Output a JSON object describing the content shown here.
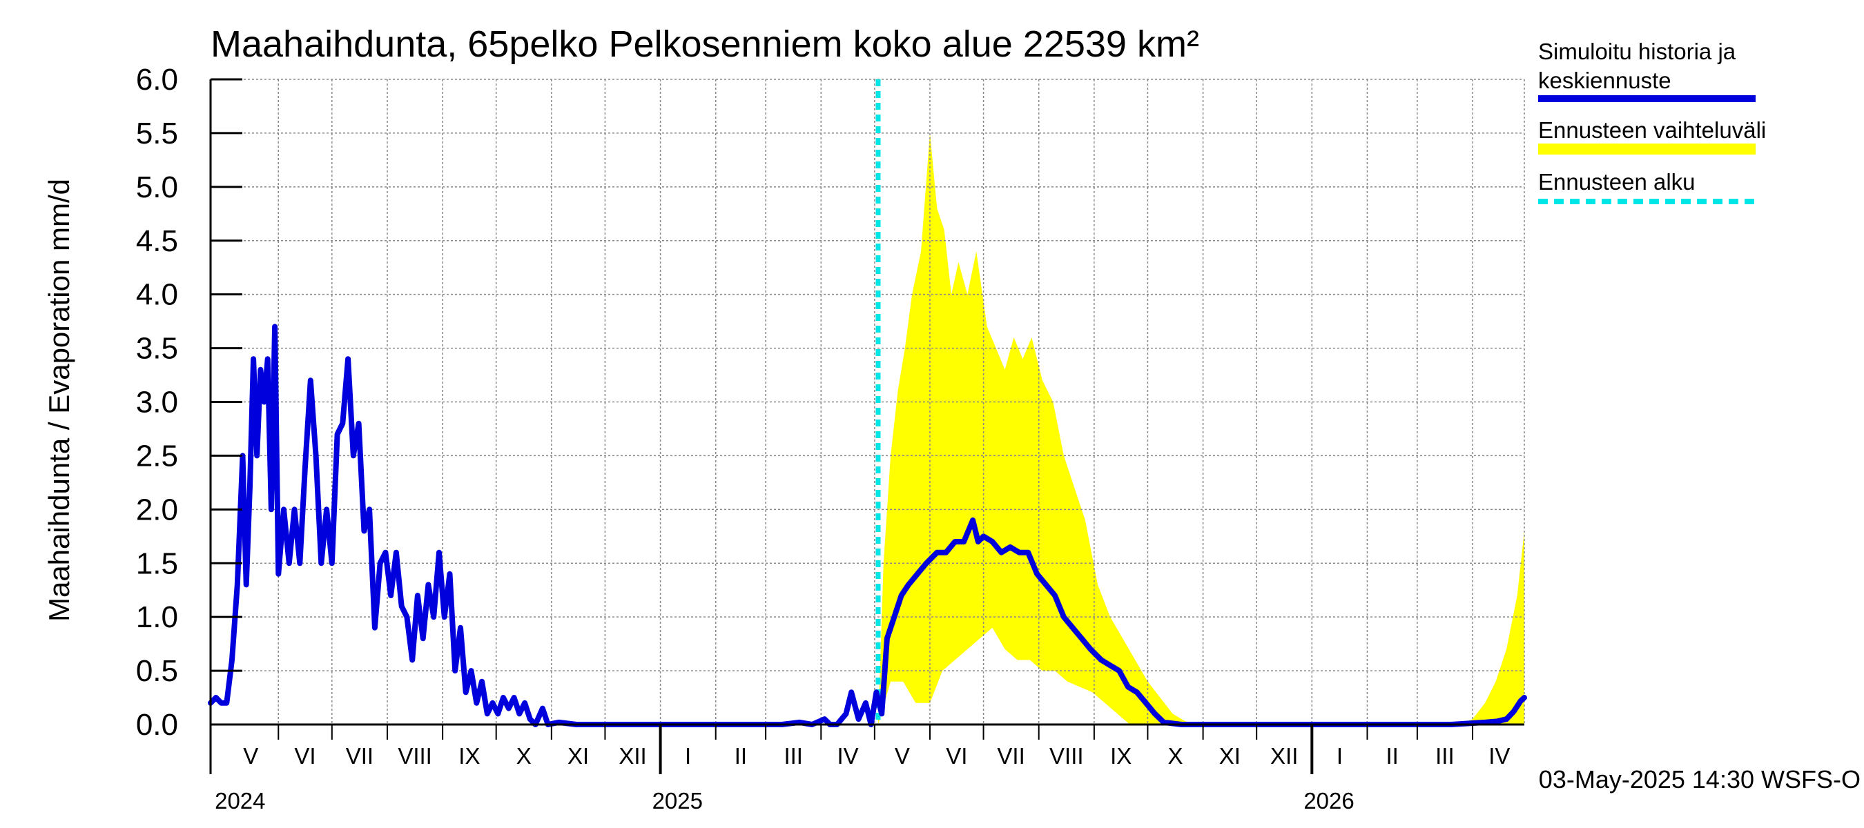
{
  "chart_data": {
    "type": "line",
    "title": "Maahaihdunta, 65pelko Pelkosenniem koko alue 22539 km²",
    "ylabel": "Maahaihdunta / Evaporation   mm/d",
    "ylim": [
      0,
      6.0
    ],
    "y_ticks": [
      "0.0",
      "0.5",
      "1.0",
      "1.5",
      "2.0",
      "2.5",
      "3.0",
      "3.5",
      "4.0",
      "4.5",
      "5.0",
      "5.5",
      "6.0"
    ],
    "x_range": [
      "2024-04-24",
      "2026-04-30"
    ],
    "grid": true,
    "legend_position": "right",
    "month_labels": [
      {
        "label": "V",
        "date": "2024-05-01"
      },
      {
        "label": "VI",
        "date": "2024-06-01"
      },
      {
        "label": "VII",
        "date": "2024-07-01"
      },
      {
        "label": "VIII",
        "date": "2024-08-01"
      },
      {
        "label": "IX",
        "date": "2024-09-01"
      },
      {
        "label": "X",
        "date": "2024-10-01"
      },
      {
        "label": "XI",
        "date": "2024-11-01"
      },
      {
        "label": "XII",
        "date": "2024-12-01"
      },
      {
        "label": "I",
        "date": "2025-01-01"
      },
      {
        "label": "II",
        "date": "2025-02-01"
      },
      {
        "label": "III",
        "date": "2025-03-01"
      },
      {
        "label": "IV",
        "date": "2025-04-01"
      },
      {
        "label": "V",
        "date": "2025-05-01"
      },
      {
        "label": "VI",
        "date": "2025-06-01"
      },
      {
        "label": "VII",
        "date": "2025-07-01"
      },
      {
        "label": "VIII",
        "date": "2025-08-01"
      },
      {
        "label": "IX",
        "date": "2025-09-01"
      },
      {
        "label": "X",
        "date": "2025-10-01"
      },
      {
        "label": "XI",
        "date": "2025-11-01"
      },
      {
        "label": "XII",
        "date": "2025-12-01"
      },
      {
        "label": "I",
        "date": "2026-01-01"
      },
      {
        "label": "II",
        "date": "2026-02-01"
      },
      {
        "label": "III",
        "date": "2026-03-01"
      },
      {
        "label": "IV",
        "date": "2026-04-01"
      }
    ],
    "year_labels": [
      {
        "label": "2024",
        "date": "2024-05-01"
      },
      {
        "label": "2025",
        "date": "2025-01-01"
      },
      {
        "label": "2026",
        "date": "2026-01-01"
      }
    ],
    "forecast_start": "2025-05-03",
    "footer": "03-May-2025 14:30 WSFS-O",
    "colors": {
      "history": "#0000dd",
      "range": "#ffff00",
      "forecast_start": "#00e5e5"
    },
    "legend": [
      {
        "label_lines": [
          "Simuloitu historia ja",
          "keskiennuste"
        ],
        "color": "#0000dd",
        "style": "solid"
      },
      {
        "label_lines": [
          "Ennusteen vaihteluväli"
        ],
        "color": "#ffff00",
        "style": "band"
      },
      {
        "label_lines": [
          "Ennusteen alku"
        ],
        "color": "#00e5e5",
        "style": "dashed"
      }
    ],
    "series": [
      {
        "name": "Simuloitu historia ja keskiennuste",
        "points": [
          [
            "2024-04-24",
            0.2
          ],
          [
            "2024-04-27",
            0.25
          ],
          [
            "2024-04-30",
            0.2
          ],
          [
            "2024-05-03",
            0.2
          ],
          [
            "2024-05-06",
            0.6
          ],
          [
            "2024-05-09",
            1.3
          ],
          [
            "2024-05-12",
            2.5
          ],
          [
            "2024-05-14",
            1.3
          ],
          [
            "2024-05-16",
            2.2
          ],
          [
            "2024-05-18",
            3.4
          ],
          [
            "2024-05-20",
            2.5
          ],
          [
            "2024-05-22",
            3.3
          ],
          [
            "2024-05-24",
            3.0
          ],
          [
            "2024-05-26",
            3.4
          ],
          [
            "2024-05-28",
            2.0
          ],
          [
            "2024-05-30",
            3.7
          ],
          [
            "2024-06-01",
            1.4
          ],
          [
            "2024-06-04",
            2.0
          ],
          [
            "2024-06-07",
            1.5
          ],
          [
            "2024-06-10",
            2.0
          ],
          [
            "2024-06-13",
            1.5
          ],
          [
            "2024-06-16",
            2.4
          ],
          [
            "2024-06-19",
            3.2
          ],
          [
            "2024-06-22",
            2.5
          ],
          [
            "2024-06-25",
            1.5
          ],
          [
            "2024-06-28",
            2.0
          ],
          [
            "2024-07-01",
            1.5
          ],
          [
            "2024-07-04",
            2.7
          ],
          [
            "2024-07-07",
            2.8
          ],
          [
            "2024-07-10",
            3.4
          ],
          [
            "2024-07-13",
            2.5
          ],
          [
            "2024-07-16",
            2.8
          ],
          [
            "2024-07-19",
            1.8
          ],
          [
            "2024-07-22",
            2.0
          ],
          [
            "2024-07-25",
            0.9
          ],
          [
            "2024-07-28",
            1.5
          ],
          [
            "2024-07-31",
            1.6
          ],
          [
            "2024-08-03",
            1.2
          ],
          [
            "2024-08-06",
            1.6
          ],
          [
            "2024-08-09",
            1.1
          ],
          [
            "2024-08-12",
            1.0
          ],
          [
            "2024-08-15",
            0.6
          ],
          [
            "2024-08-18",
            1.2
          ],
          [
            "2024-08-21",
            0.8
          ],
          [
            "2024-08-24",
            1.3
          ],
          [
            "2024-08-27",
            1.0
          ],
          [
            "2024-08-30",
            1.6
          ],
          [
            "2024-09-02",
            1.0
          ],
          [
            "2024-09-05",
            1.4
          ],
          [
            "2024-09-08",
            0.5
          ],
          [
            "2024-09-11",
            0.9
          ],
          [
            "2024-09-14",
            0.3
          ],
          [
            "2024-09-17",
            0.5
          ],
          [
            "2024-09-20",
            0.2
          ],
          [
            "2024-09-23",
            0.4
          ],
          [
            "2024-09-26",
            0.1
          ],
          [
            "2024-09-29",
            0.2
          ],
          [
            "2024-10-02",
            0.1
          ],
          [
            "2024-10-05",
            0.25
          ],
          [
            "2024-10-08",
            0.15
          ],
          [
            "2024-10-11",
            0.25
          ],
          [
            "2024-10-14",
            0.1
          ],
          [
            "2024-10-17",
            0.2
          ],
          [
            "2024-10-20",
            0.05
          ],
          [
            "2024-10-23",
            0.0
          ],
          [
            "2024-10-27",
            0.15
          ],
          [
            "2024-10-30",
            0.0
          ],
          [
            "2024-11-05",
            0.02
          ],
          [
            "2024-11-15",
            0.0
          ],
          [
            "2024-12-15",
            0.0
          ],
          [
            "2025-01-15",
            0.0
          ],
          [
            "2025-02-15",
            0.0
          ],
          [
            "2025-03-10",
            0.0
          ],
          [
            "2025-03-20",
            0.02
          ],
          [
            "2025-03-27",
            0.0
          ],
          [
            "2025-04-03",
            0.05
          ],
          [
            "2025-04-06",
            0.0
          ],
          [
            "2025-04-10",
            0.0
          ],
          [
            "2025-04-15",
            0.1
          ],
          [
            "2025-04-18",
            0.3
          ],
          [
            "2025-04-22",
            0.05
          ],
          [
            "2025-04-26",
            0.2
          ],
          [
            "2025-04-29",
            0.0
          ],
          [
            "2025-05-02",
            0.3
          ],
          [
            "2025-05-05",
            0.1
          ],
          [
            "2025-05-08",
            0.8
          ],
          [
            "2025-05-12",
            1.0
          ],
          [
            "2025-05-16",
            1.2
          ],
          [
            "2025-05-20",
            1.3
          ],
          [
            "2025-05-25",
            1.4
          ],
          [
            "2025-05-30",
            1.5
          ],
          [
            "2025-06-05",
            1.6
          ],
          [
            "2025-06-10",
            1.6
          ],
          [
            "2025-06-15",
            1.7
          ],
          [
            "2025-06-20",
            1.7
          ],
          [
            "2025-06-25",
            1.9
          ],
          [
            "2025-06-28",
            1.7
          ],
          [
            "2025-07-01",
            1.75
          ],
          [
            "2025-07-06",
            1.7
          ],
          [
            "2025-07-11",
            1.6
          ],
          [
            "2025-07-16",
            1.65
          ],
          [
            "2025-07-21",
            1.6
          ],
          [
            "2025-07-26",
            1.6
          ],
          [
            "2025-07-31",
            1.4
          ],
          [
            "2025-08-05",
            1.3
          ],
          [
            "2025-08-10",
            1.2
          ],
          [
            "2025-08-15",
            1.0
          ],
          [
            "2025-08-20",
            0.9
          ],
          [
            "2025-08-25",
            0.8
          ],
          [
            "2025-08-30",
            0.7
          ],
          [
            "2025-09-05",
            0.6
          ],
          [
            "2025-09-10",
            0.55
          ],
          [
            "2025-09-15",
            0.5
          ],
          [
            "2025-09-20",
            0.35
          ],
          [
            "2025-09-25",
            0.3
          ],
          [
            "2025-09-30",
            0.2
          ],
          [
            "2025-10-05",
            0.1
          ],
          [
            "2025-10-10",
            0.02
          ],
          [
            "2025-10-20",
            0.0
          ],
          [
            "2026-01-15",
            0.0
          ],
          [
            "2026-03-20",
            0.0
          ],
          [
            "2026-03-30",
            0.01
          ],
          [
            "2026-04-08",
            0.02
          ],
          [
            "2026-04-15",
            0.03
          ],
          [
            "2026-04-20",
            0.05
          ],
          [
            "2026-04-24",
            0.12
          ],
          [
            "2026-04-28",
            0.22
          ],
          [
            "2026-04-30",
            0.25
          ]
        ]
      },
      {
        "name": "Ennusteen vaihteluväli",
        "upper": [
          [
            "2025-05-03",
            0.0
          ],
          [
            "2025-05-06",
            1.5
          ],
          [
            "2025-05-10",
            2.5
          ],
          [
            "2025-05-14",
            3.1
          ],
          [
            "2025-05-18",
            3.5
          ],
          [
            "2025-05-22",
            4.0
          ],
          [
            "2025-05-27",
            4.4
          ],
          [
            "2025-06-01",
            5.5
          ],
          [
            "2025-06-05",
            4.8
          ],
          [
            "2025-06-09",
            4.6
          ],
          [
            "2025-06-13",
            4.0
          ],
          [
            "2025-06-17",
            4.3
          ],
          [
            "2025-06-22",
            4.0
          ],
          [
            "2025-06-27",
            4.4
          ],
          [
            "2025-07-03",
            3.7
          ],
          [
            "2025-07-08",
            3.5
          ],
          [
            "2025-07-13",
            3.3
          ],
          [
            "2025-07-18",
            3.6
          ],
          [
            "2025-07-23",
            3.4
          ],
          [
            "2025-07-28",
            3.6
          ],
          [
            "2025-08-03",
            3.2
          ],
          [
            "2025-08-09",
            3.0
          ],
          [
            "2025-08-15",
            2.5
          ],
          [
            "2025-08-21",
            2.2
          ],
          [
            "2025-08-27",
            1.9
          ],
          [
            "2025-09-03",
            1.3
          ],
          [
            "2025-09-10",
            1.0
          ],
          [
            "2025-09-17",
            0.8
          ],
          [
            "2025-09-24",
            0.6
          ],
          [
            "2025-10-01",
            0.4
          ],
          [
            "2025-10-08",
            0.25
          ],
          [
            "2025-10-15",
            0.1
          ],
          [
            "2025-10-22",
            0.03
          ],
          [
            "2025-10-29",
            0.0
          ],
          [
            "2026-03-25",
            0.0
          ],
          [
            "2026-04-01",
            0.05
          ],
          [
            "2026-04-08",
            0.2
          ],
          [
            "2026-04-14",
            0.4
          ],
          [
            "2026-04-20",
            0.7
          ],
          [
            "2026-04-26",
            1.2
          ],
          [
            "2026-04-30",
            1.8
          ]
        ],
        "lower": [
          [
            "2025-05-03",
            0.0
          ],
          [
            "2025-05-10",
            0.4
          ],
          [
            "2025-05-17",
            0.4
          ],
          [
            "2025-05-24",
            0.2
          ],
          [
            "2025-06-01",
            0.2
          ],
          [
            "2025-06-08",
            0.5
          ],
          [
            "2025-06-15",
            0.6
          ],
          [
            "2025-06-22",
            0.7
          ],
          [
            "2025-06-29",
            0.8
          ],
          [
            "2025-07-06",
            0.9
          ],
          [
            "2025-07-13",
            0.7
          ],
          [
            "2025-07-20",
            0.6
          ],
          [
            "2025-07-27",
            0.6
          ],
          [
            "2025-08-03",
            0.5
          ],
          [
            "2025-08-10",
            0.5
          ],
          [
            "2025-08-17",
            0.4
          ],
          [
            "2025-08-24",
            0.35
          ],
          [
            "2025-08-31",
            0.3
          ],
          [
            "2025-09-07",
            0.2
          ],
          [
            "2025-09-14",
            0.1
          ],
          [
            "2025-09-21",
            0.0
          ],
          [
            "2026-04-30",
            0.0
          ]
        ]
      }
    ]
  }
}
